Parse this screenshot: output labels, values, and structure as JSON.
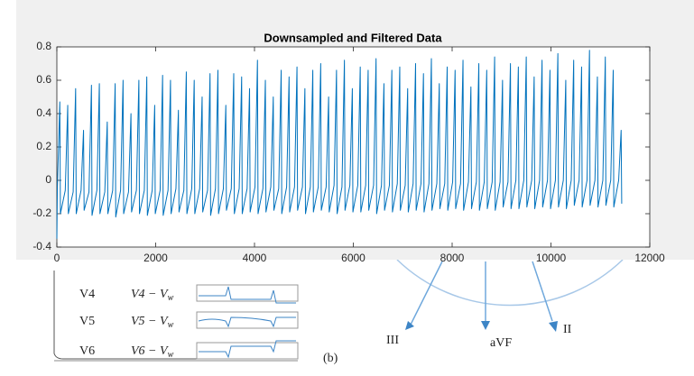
{
  "chart_data": {
    "type": "line",
    "title": "Downsampled and Filtered Data",
    "xlim": [
      0,
      12000
    ],
    "xticks": [
      0,
      2000,
      4000,
      6000,
      8000,
      10000,
      12000
    ],
    "ylim": [
      -0.4,
      0.8
    ],
    "yticks": [
      -0.4,
      -0.2,
      0,
      0.2,
      0.4,
      0.6,
      0.8
    ],
    "grid": false,
    "series": [
      {
        "color": "#0072bd",
        "x": [
          0,
          10,
          60,
          72,
          170,
          220,
          232,
          330,
          380,
          392,
          490,
          540,
          552,
          650,
          700,
          712,
          810,
          860,
          872,
          970,
          1020,
          1032,
          1130,
          1180,
          1192,
          1290,
          1340,
          1352,
          1450,
          1500,
          1512,
          1610,
          1660,
          1672,
          1770,
          1820,
          1832,
          1930,
          1980,
          1992,
          2090,
          2140,
          2152,
          2250,
          2300,
          2312,
          2410,
          2460,
          2472,
          2570,
          2620,
          2632,
          2730,
          2780,
          2792,
          2890,
          2940,
          2952,
          3050,
          3100,
          3112,
          3210,
          3260,
          3272,
          3370,
          3420,
          3432,
          3530,
          3580,
          3592,
          3690,
          3740,
          3752,
          3850,
          3900,
          3912,
          4010,
          4060,
          4072,
          4170,
          4220,
          4232,
          4330,
          4380,
          4392,
          4490,
          4540,
          4552,
          4650,
          4700,
          4712,
          4810,
          4860,
          4872,
          4970,
          5020,
          5032,
          5130,
          5180,
          5192,
          5290,
          5340,
          5352,
          5450,
          5500,
          5512,
          5610,
          5660,
          5672,
          5770,
          5820,
          5832,
          5930,
          5980,
          5992,
          6090,
          6140,
          6152,
          6250,
          6300,
          6312,
          6410,
          6460,
          6472,
          6570,
          6620,
          6632,
          6730,
          6780,
          6792,
          6890,
          6940,
          6952,
          7050,
          7100,
          7112,
          7210,
          7260,
          7272,
          7370,
          7420,
          7432,
          7530,
          7580,
          7592,
          7690,
          7740,
          7752,
          7850,
          7900,
          7912,
          8010,
          8060,
          8072,
          8170,
          8220,
          8232,
          8330,
          8380,
          8392,
          8490,
          8540,
          8552,
          8650,
          8700,
          8712,
          8810,
          8860,
          8872,
          8970,
          9020,
          9032,
          9130,
          9180,
          9192,
          9290,
          9340,
          9352,
          9450,
          9500,
          9512,
          9610,
          9660,
          9672,
          9770,
          9820,
          9832,
          9930,
          9980,
          9992,
          10090,
          10140,
          10152,
          10250,
          10300,
          10312,
          10410,
          10460,
          10472,
          10570,
          10620,
          10632,
          10730,
          10780,
          10792,
          10890,
          10940,
          10952,
          11050,
          11100,
          11112,
          11210,
          11260,
          11272,
          11370,
          11420,
          11432
        ],
        "values": [
          -0.35,
          -0.05,
          0.47,
          -0.2,
          -0.06,
          0.45,
          -0.2,
          -0.07,
          0.55,
          -0.2,
          -0.06,
          0.3,
          -0.18,
          -0.07,
          0.57,
          -0.21,
          -0.06,
          0.58,
          -0.2,
          -0.07,
          0.35,
          -0.2,
          -0.06,
          0.58,
          -0.22,
          -0.06,
          0.6,
          -0.2,
          -0.07,
          0.4,
          -0.19,
          -0.06,
          0.6,
          -0.2,
          -0.06,
          0.62,
          -0.21,
          -0.06,
          0.45,
          -0.2,
          -0.06,
          0.63,
          -0.21,
          -0.06,
          0.6,
          -0.2,
          -0.05,
          0.42,
          -0.19,
          -0.06,
          0.65,
          -0.2,
          -0.05,
          0.6,
          -0.2,
          -0.05,
          0.5,
          -0.19,
          -0.06,
          0.64,
          -0.21,
          -0.05,
          0.66,
          -0.2,
          -0.05,
          0.45,
          -0.18,
          -0.05,
          0.64,
          -0.2,
          -0.05,
          0.62,
          -0.2,
          -0.05,
          0.55,
          -0.19,
          -0.04,
          0.72,
          -0.2,
          -0.05,
          0.6,
          -0.19,
          -0.04,
          0.5,
          -0.18,
          -0.05,
          0.66,
          -0.2,
          -0.04,
          0.62,
          -0.19,
          -0.04,
          0.68,
          -0.18,
          -0.04,
          0.55,
          -0.2,
          -0.04,
          0.66,
          -0.19,
          -0.04,
          0.7,
          -0.18,
          -0.04,
          0.5,
          -0.19,
          -0.03,
          0.66,
          -0.2,
          -0.04,
          0.72,
          -0.18,
          -0.03,
          0.55,
          -0.19,
          -0.03,
          0.68,
          -0.19,
          -0.03,
          0.66,
          -0.18,
          -0.03,
          0.73,
          -0.2,
          -0.03,
          0.58,
          -0.18,
          -0.03,
          0.66,
          -0.19,
          -0.02,
          0.68,
          -0.18,
          -0.03,
          0.55,
          -0.19,
          -0.02,
          0.7,
          -0.18,
          -0.02,
          0.64,
          -0.19,
          -0.02,
          0.73,
          -0.18,
          -0.02,
          0.58,
          -0.17,
          -0.02,
          0.68,
          -0.18,
          -0.01,
          0.66,
          -0.17,
          -0.02,
          0.72,
          -0.18,
          -0.01,
          0.56,
          -0.17,
          -0.01,
          0.7,
          -0.18,
          -0.01,
          0.66,
          -0.17,
          -0.01,
          0.74,
          -0.18,
          -0.01,
          0.6,
          -0.16,
          -0.01,
          0.7,
          -0.17,
          0,
          0.68,
          -0.17,
          0,
          0.74,
          -0.16,
          0,
          0.62,
          -0.17,
          0,
          0.72,
          -0.16,
          0,
          0.66,
          -0.17,
          0,
          0.76,
          -0.16,
          0,
          0.6,
          -0.17,
          0,
          0.72,
          -0.15,
          0,
          0.68,
          -0.16,
          0,
          0.78,
          -0.15,
          0,
          0.62,
          -0.16,
          0,
          0.74,
          -0.15,
          0,
          0.66,
          -0.16,
          0,
          0.3,
          -0.14
        ]
      }
    ]
  },
  "background": {
    "leads": [
      "V4",
      "V5",
      "V6"
    ],
    "formulas": [
      "V4 − V",
      "V5 − V",
      "V6 − V"
    ],
    "subscript": "w",
    "panel_label": "(b)",
    "axes": [
      "III",
      "aVF",
      "II"
    ]
  }
}
